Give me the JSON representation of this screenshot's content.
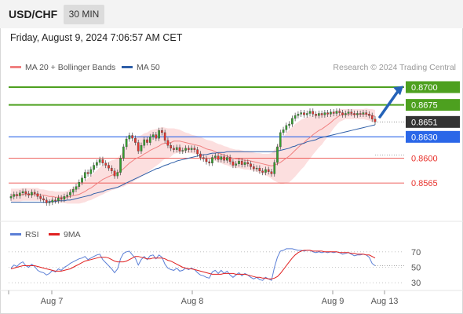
{
  "header": {
    "symbol": "USD/CHF",
    "timeframe": "30 MIN",
    "background": "#f3f3f3"
  },
  "timestamp": "Friday, August 9, 2024 7:06:57 AM CET",
  "copyright": "Research © 2024 Trading Central",
  "colors": {
    "up_candle": "#33a02c",
    "down_candle": "#e8322c",
    "ma20": "#f08080",
    "ma50": "#2f5fa8",
    "bollinger_fill": "#fbd9d9",
    "resistance": "#4da01f",
    "pivot": "#2b67e8",
    "support": "#e8322c",
    "last_price_tag": "#333333",
    "rsi": "#5b7fd6",
    "rsi_ma": "#e02020",
    "arrow": "#2563b8"
  },
  "chart_data": [
    {
      "type": "candlestick",
      "title": "",
      "legend": [
        {
          "name": "MA 20 + Bollinger Bands",
          "color": "#f08080"
        },
        {
          "name": "MA 50",
          "color": "#2f5fa8"
        }
      ],
      "x_ticks": [
        "Aug 7",
        "Aug 8",
        "Aug 9",
        "Aug 13"
      ],
      "y_labels": [
        "0.8700",
        "0.8675",
        "0.8651",
        "0.8630",
        "0.8600",
        "0.8565"
      ],
      "ylim": [
        0.8511,
        0.8721
      ],
      "levels": [
        {
          "label": "0.8700",
          "value": 0.87,
          "kind": "resistance"
        },
        {
          "label": "0.8675",
          "value": 0.8675,
          "kind": "resistance"
        },
        {
          "label": "0.8630",
          "value": 0.863,
          "kind": "pivot"
        },
        {
          "label": "0.8600",
          "value": 0.86,
          "kind": "support"
        },
        {
          "label": "0.8565",
          "value": 0.8565,
          "kind": "support"
        }
      ],
      "last_price": {
        "label": "0.8651",
        "value": 0.8651
      },
      "close": [
        0.8546,
        0.8549,
        0.8547,
        0.8551,
        0.8553,
        0.855,
        0.8548,
        0.8552,
        0.855,
        0.8546,
        0.8543,
        0.8541,
        0.8537,
        0.8538,
        0.8541,
        0.854,
        0.8544,
        0.8542,
        0.8546,
        0.8548,
        0.8552,
        0.8556,
        0.856,
        0.8566,
        0.8572,
        0.858,
        0.8578,
        0.8584,
        0.859,
        0.8594,
        0.8598,
        0.8593,
        0.859,
        0.8586,
        0.8582,
        0.8575,
        0.858,
        0.86,
        0.8616,
        0.8627,
        0.8632,
        0.8628,
        0.8622,
        0.861,
        0.8618,
        0.8626,
        0.8622,
        0.863,
        0.8633,
        0.8628,
        0.8639,
        0.8636,
        0.8625,
        0.8618,
        0.8614,
        0.8612,
        0.8615,
        0.861,
        0.8611,
        0.8614,
        0.8612,
        0.8614,
        0.8612,
        0.8606,
        0.8601,
        0.8599,
        0.8595,
        0.8593,
        0.8601,
        0.8603,
        0.8598,
        0.8602,
        0.8597,
        0.8601,
        0.8595,
        0.859,
        0.8592,
        0.8596,
        0.8591,
        0.8594,
        0.8592,
        0.8588,
        0.8585,
        0.8586,
        0.8582,
        0.858,
        0.8584,
        0.8581,
        0.8578,
        0.8594,
        0.8616,
        0.8636,
        0.864,
        0.8646,
        0.8648,
        0.8656,
        0.866,
        0.8662,
        0.8664,
        0.8661,
        0.8663,
        0.8666,
        0.8662,
        0.866,
        0.8663,
        0.8661,
        0.8664,
        0.8662,
        0.8665,
        0.8663,
        0.8666,
        0.8664,
        0.8661,
        0.8663,
        0.8665,
        0.8663,
        0.8661,
        0.8663,
        0.8662,
        0.8664,
        0.8662,
        0.866,
        0.8655,
        0.8651
      ],
      "ma20": [
        0.8548,
        0.8548,
        0.8548,
        0.8548,
        0.8549,
        0.8549,
        0.8549,
        0.8549,
        0.8549,
        0.8549,
        0.8548,
        0.8548,
        0.8547,
        0.8546,
        0.8546,
        0.8545,
        0.8545,
        0.8545,
        0.8545,
        0.8545,
        0.8546,
        0.8547,
        0.8548,
        0.8549,
        0.8551,
        0.8553,
        0.8556,
        0.8558,
        0.8561,
        0.8564,
        0.8567,
        0.857,
        0.8572,
        0.8574,
        0.8576,
        0.8577,
        0.8579,
        0.8582,
        0.8585,
        0.8589,
        0.8593,
        0.8596,
        0.8599,
        0.8601,
        0.8603,
        0.8606,
        0.8608,
        0.8611,
        0.8613,
        0.8615,
        0.8617,
        0.862,
        0.8621,
        0.8621,
        0.8622,
        0.8624,
        0.8624,
        0.8624,
        0.8623,
        0.8622,
        0.8621,
        0.862,
        0.8619,
        0.8618,
        0.8617,
        0.8615,
        0.8613,
        0.8612,
        0.8611,
        0.8609,
        0.8607,
        0.8606,
        0.8604,
        0.8603,
        0.8601,
        0.86,
        0.8599,
        0.8599,
        0.8598,
        0.8597,
        0.8597,
        0.8596,
        0.8595,
        0.8594,
        0.8593,
        0.8592,
        0.8591,
        0.859,
        0.8589,
        0.859,
        0.8592,
        0.8594,
        0.8597,
        0.86,
        0.8603,
        0.8607,
        0.8611,
        0.8615,
        0.8619,
        0.8622,
        0.8626,
        0.8629,
        0.8633,
        0.8636,
        0.8639,
        0.8641,
        0.8644,
        0.8647,
        0.865,
        0.8654,
        0.8657,
        0.866,
        0.8661,
        0.8662,
        0.8662,
        0.8662,
        0.8662,
        0.8662,
        0.8662,
        0.8662,
        0.8662,
        0.8661,
        0.866,
        0.8659
      ],
      "ma50": [
        0.8538,
        0.8538,
        0.8538,
        0.8538,
        0.8538,
        0.8538,
        0.8538,
        0.8538,
        0.8538,
        0.8538,
        0.8538,
        0.8538,
        0.8538,
        0.8539,
        0.8539,
        0.8539,
        0.854,
        0.854,
        0.854,
        0.8541,
        0.8541,
        0.8542,
        0.8543,
        0.8544,
        0.8545,
        0.8546,
        0.8547,
        0.8548,
        0.855,
        0.8551,
        0.8552,
        0.8553,
        0.8555,
        0.8556,
        0.8557,
        0.8558,
        0.8559,
        0.8561,
        0.8563,
        0.8565,
        0.8567,
        0.8569,
        0.8571,
        0.8573,
        0.8575,
        0.8577,
        0.8579,
        0.8581,
        0.8583,
        0.8585,
        0.8586,
        0.8588,
        0.859,
        0.8591,
        0.8593,
        0.8594,
        0.8596,
        0.8597,
        0.8598,
        0.8599,
        0.86,
        0.8601,
        0.8602,
        0.8603,
        0.8604,
        0.8605,
        0.8605,
        0.8606,
        0.8607,
        0.8607,
        0.8608,
        0.8608,
        0.8608,
        0.8609,
        0.8609,
        0.8609,
        0.8609,
        0.8609,
        0.8609,
        0.8609,
        0.8609,
        0.8609,
        0.8609,
        0.8609,
        0.8609,
        0.8609,
        0.8609,
        0.8609,
        0.8609,
        0.8609,
        0.861,
        0.8611,
        0.8612,
        0.8613,
        0.8614,
        0.8616,
        0.8617,
        0.8619,
        0.862,
        0.8621,
        0.8623,
        0.8624,
        0.8625,
        0.8626,
        0.8628,
        0.8629,
        0.863,
        0.8631,
        0.8632,
        0.8633,
        0.8634,
        0.8635,
        0.8636,
        0.8637,
        0.8638,
        0.8639,
        0.864,
        0.8641,
        0.8642,
        0.8643,
        0.8644,
        0.8645,
        0.8646,
        0.8647
      ],
      "bollinger_half_width": [
        0.0009,
        0.0009,
        0.0009,
        0.0009,
        0.0009,
        0.0009,
        0.0009,
        0.0009,
        0.0009,
        0.0009,
        0.0008,
        0.0008,
        0.0008,
        0.0008,
        0.0008,
        0.0008,
        0.0008,
        0.0008,
        0.0008,
        0.0009,
        0.001,
        0.0011,
        0.0012,
        0.0013,
        0.0014,
        0.0015,
        0.0016,
        0.0017,
        0.0018,
        0.0019,
        0.002,
        0.0021,
        0.0021,
        0.0021,
        0.0021,
        0.0021,
        0.0021,
        0.0023,
        0.0025,
        0.0027,
        0.0029,
        0.003,
        0.003,
        0.003,
        0.0029,
        0.0029,
        0.0028,
        0.0028,
        0.0027,
        0.0026,
        0.0025,
        0.0024,
        0.0022,
        0.0021,
        0.002,
        0.0018,
        0.0017,
        0.0016,
        0.0015,
        0.0014,
        0.0014,
        0.0013,
        0.0013,
        0.0013,
        0.0013,
        0.0013,
        0.0013,
        0.0013,
        0.0013,
        0.0013,
        0.0013,
        0.0013,
        0.0013,
        0.0013,
        0.0013,
        0.0013,
        0.0013,
        0.0013,
        0.0013,
        0.0013,
        0.0013,
        0.0013,
        0.0013,
        0.0013,
        0.0014,
        0.0014,
        0.0015,
        0.0016,
        0.0018,
        0.0022,
        0.0026,
        0.003,
        0.0033,
        0.0035,
        0.0037,
        0.0037,
        0.0037,
        0.0036,
        0.0035,
        0.0034,
        0.0032,
        0.003,
        0.0028,
        0.0026,
        0.0024,
        0.0022,
        0.0019,
        0.0017,
        0.0014,
        0.0012,
        0.001,
        0.0009,
        0.0008,
        0.0007,
        0.0007,
        0.0007,
        0.0007,
        0.0007,
        0.0007,
        0.0007,
        0.0008,
        0.0008,
        0.0009,
        0.0009
      ]
    },
    {
      "type": "line",
      "title": "",
      "legend": [
        {
          "name": "RSI",
          "color": "#5b7fd6"
        },
        {
          "name": "9MA",
          "color": "#e02020"
        }
      ],
      "y_ticks": [
        70,
        50,
        30
      ],
      "ylim": [
        20,
        80
      ],
      "rsi": [
        49,
        53,
        51,
        55,
        57,
        52,
        50,
        54,
        51,
        46,
        44,
        43,
        40,
        42,
        46,
        44,
        48,
        46,
        50,
        52,
        55,
        57,
        59,
        61,
        62,
        64,
        60,
        62,
        64,
        66,
        67,
        60,
        56,
        52,
        48,
        43,
        48,
        61,
        68,
        70,
        71,
        66,
        62,
        53,
        60,
        64,
        60,
        65,
        66,
        61,
        66,
        63,
        54,
        49,
        47,
        46,
        49,
        45,
        46,
        49,
        47,
        49,
        47,
        43,
        40,
        39,
        37,
        36,
        44,
        46,
        42,
        46,
        42,
        45,
        40,
        37,
        40,
        43,
        39,
        42,
        40,
        37,
        35,
        37,
        34,
        33,
        37,
        35,
        33,
        50,
        63,
        71,
        72,
        74,
        74,
        74,
        73,
        72,
        72,
        71,
        72,
        72,
        70,
        69,
        70,
        69,
        70,
        69,
        70,
        69,
        70,
        69,
        67,
        68,
        69,
        67,
        65,
        66,
        66,
        67,
        66,
        63,
        55,
        52
      ],
      "rsi_ma": [
        48,
        49,
        50,
        51,
        52,
        52,
        52,
        52,
        52,
        51,
        50,
        49,
        48,
        47,
        46,
        45,
        45,
        45,
        46,
        47,
        48,
        50,
        52,
        54,
        56,
        58,
        59,
        60,
        61,
        62,
        63,
        63,
        63,
        62,
        60,
        58,
        57,
        57,
        57,
        58,
        60,
        62,
        64,
        64,
        63,
        62,
        61,
        61,
        62,
        62,
        62,
        62,
        61,
        59,
        58,
        56,
        54,
        52,
        50,
        49,
        48,
        48,
        47,
        46,
        45,
        44,
        43,
        42,
        41,
        41,
        41,
        41,
        42,
        42,
        42,
        42,
        41,
        41,
        41,
        41,
        40,
        39,
        38,
        37,
        37,
        36,
        36,
        35,
        35,
        36,
        38,
        42,
        47,
        52,
        57,
        62,
        66,
        69,
        71,
        72,
        72,
        72,
        71,
        71,
        71,
        71,
        70,
        70,
        70,
        70,
        70,
        69,
        69,
        69,
        69,
        68,
        68,
        67,
        67,
        67,
        66,
        66,
        64,
        62
      ]
    }
  ]
}
